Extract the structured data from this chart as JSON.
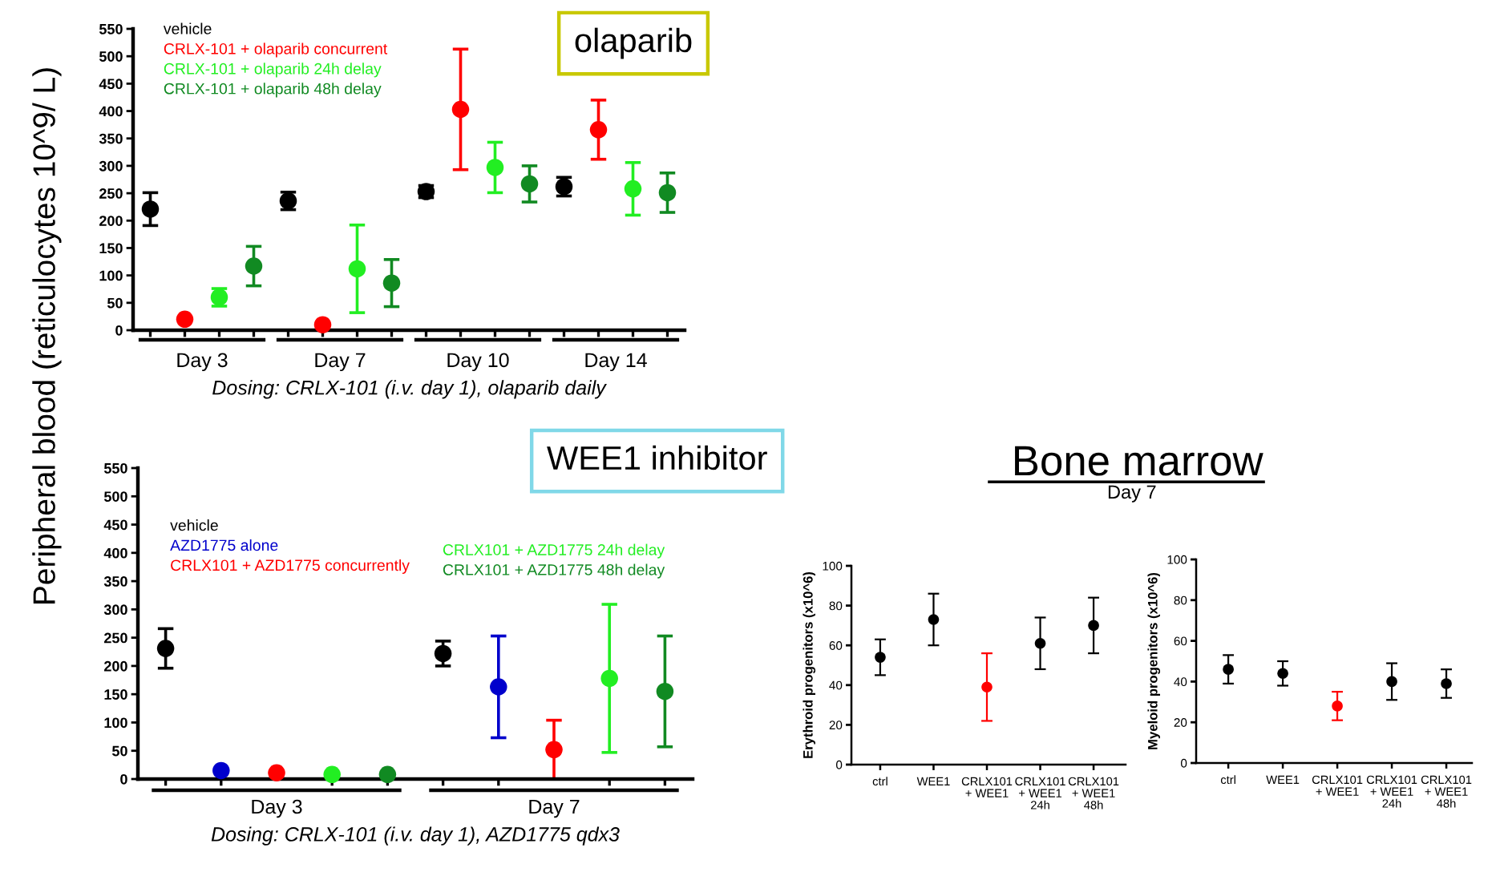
{
  "chart_data": [
    {
      "type": "scatter",
      "title": "olaparib",
      "ylabel": "Peripheral blood (reticulocytes 10^9/ L)",
      "xlabel": "Dosing: CRLX-101 (i.v. day 1), olaparib daily",
      "categories": [
        "Day 3",
        "Day 7",
        "Day 10",
        "Day 14"
      ],
      "ylim": [
        0,
        550
      ],
      "yticks": [
        0,
        50,
        100,
        150,
        200,
        250,
        300,
        350,
        400,
        450,
        500,
        550
      ],
      "marker": "circle",
      "legend": "top left",
      "series": [
        {
          "name": "vehicle",
          "color": "#000000",
          "values": [
            221,
            236,
            253,
            262
          ],
          "errors": [
            30,
            16,
            11,
            17
          ]
        },
        {
          "name": "CRLX-101 + olaparib concurrent",
          "color": "#ff0000",
          "values": [
            20,
            10,
            403,
            366
          ],
          "errors": [
            null,
            null,
            110,
            54
          ]
        },
        {
          "name": "CRLX-101 + olaparib 24h delay",
          "color": "#22ee22",
          "values": [
            60,
            112,
            297,
            258
          ],
          "errors": [
            16,
            80,
            46,
            48
          ]
        },
        {
          "name": "CRLX-101 + olaparib 48h delay",
          "color": "#118a22",
          "values": [
            117,
            86,
            267,
            251
          ],
          "errors": [
            36,
            43,
            33,
            36
          ]
        }
      ]
    },
    {
      "type": "scatter",
      "title": "WEE1 inhibitor",
      "xlabel": "Dosing: CRLX-101 (i.v. day 1), AZD1775 qdx3",
      "categories": [
        "Day 3",
        "Day 7"
      ],
      "ylim": [
        0,
        550
      ],
      "yticks": [
        0,
        50,
        100,
        150,
        200,
        250,
        300,
        350,
        400,
        450,
        500,
        550
      ],
      "marker": "circle",
      "legend": "top left",
      "series": [
        {
          "name": "vehicle",
          "color": "#000000",
          "values": [
            231,
            222
          ],
          "errors": [
            35,
            22
          ]
        },
        {
          "name": "AZD1775 alone",
          "color": "#0000cc",
          "values": [
            15,
            163
          ],
          "errors": [
            null,
            90
          ]
        },
        {
          "name": "CRLX101 + AZD1775 concurrently",
          "color": "#ff0000",
          "values": [
            11,
            52
          ],
          "errors": [
            null,
            52
          ]
        },
        {
          "name": "CRLX101 + AZD1775 24h delay",
          "color": "#22ee22",
          "values": [
            8,
            178
          ],
          "errors": [
            null,
            131
          ]
        },
        {
          "name": "CRLX101 + AZD1775 48h delay",
          "color": "#118a22",
          "values": [
            8,
            155
          ],
          "errors": [
            null,
            98
          ]
        }
      ]
    },
    {
      "type": "other",
      "title": "Bone marrow",
      "subtitle": "Day 7"
    },
    {
      "type": "scatter",
      "ylabel": "Erythroid progenitors (x10^6)",
      "categories": [
        "ctrl",
        "WEE1",
        "CRLX101\n+ WEE1",
        "CRLX101\n+ WEE1\n24h",
        "CRLX101\n+ WEE1\n48h"
      ],
      "values": [
        54,
        73,
        39,
        61,
        70
      ],
      "errors": [
        9,
        13,
        17,
        13,
        14
      ],
      "colors": [
        "#000000",
        "#000000",
        "#ff0000",
        "#000000",
        "#000000"
      ],
      "ylim": [
        0,
        100
      ],
      "yticks": [
        0,
        20,
        40,
        60,
        80,
        100
      ],
      "marker": "circle"
    },
    {
      "type": "scatter",
      "ylabel": "Myeloid progenitors (x10^6)",
      "categories": [
        "ctrl",
        "WEE1",
        "CRLX101\n+ WEE1",
        "CRLX101\n+ WEE1\n24h",
        "CRLX101\n+ WEE1\n48h"
      ],
      "values": [
        46,
        44,
        28,
        40,
        39
      ],
      "errors": [
        7,
        6,
        7,
        9,
        7
      ],
      "colors": [
        "#000000",
        "#000000",
        "#ff0000",
        "#000000",
        "#000000"
      ],
      "ylim": [
        0,
        100
      ],
      "yticks": [
        0,
        20,
        40,
        60,
        80,
        100
      ],
      "marker": "circle"
    }
  ]
}
